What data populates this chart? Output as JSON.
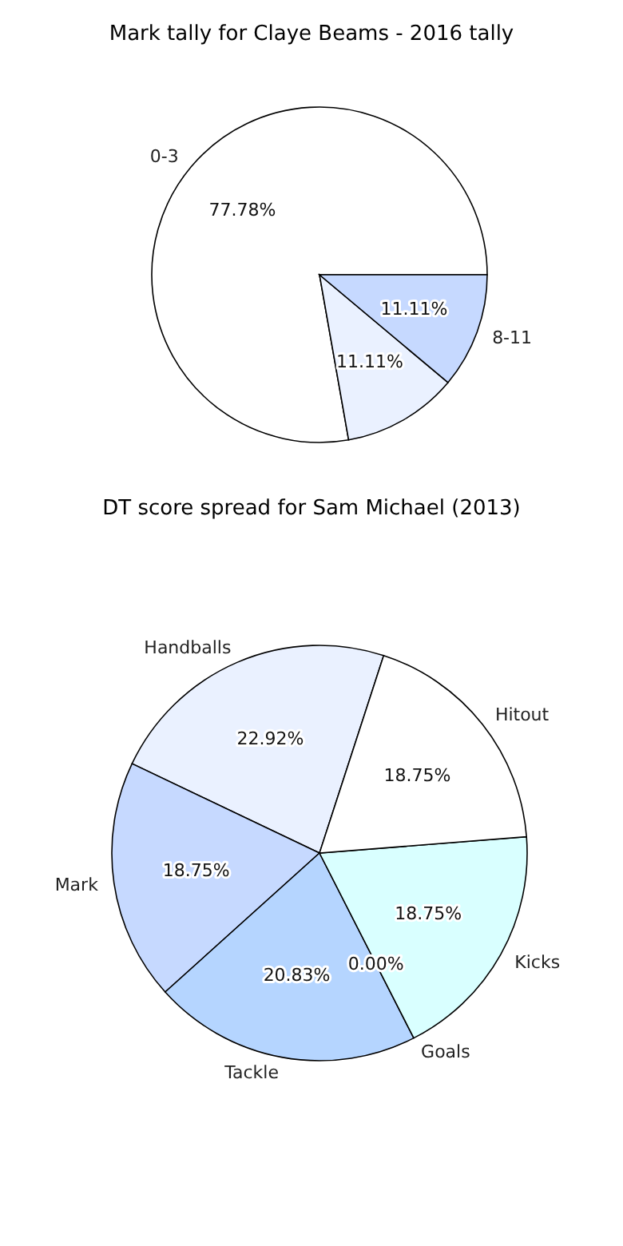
{
  "chart_data": [
    {
      "type": "pie",
      "title": "Mark tally for Claye Beams - 2016 tally",
      "categories": [
        "0-3",
        null,
        "8-11"
      ],
      "values": [
        77.78,
        11.11,
        11.11
      ],
      "colors": [
        "#ffffff",
        "#eaf1ff",
        "#c6d9ff"
      ],
      "value_labels": [
        "77.78%",
        "11.11%",
        "11.11%"
      ]
    },
    {
      "type": "pie",
      "title": "DT score spread for Sam Michael (2013)",
      "categories": [
        "Handballs",
        "Mark",
        "Tackle",
        "Goals",
        "Kicks",
        "Hitout"
      ],
      "values": [
        22.92,
        18.75,
        20.83,
        0.0,
        18.75,
        18.75
      ],
      "colors": [
        "#eaf1ff",
        "#c6d9ff",
        "#b5d5ff",
        "#ffffff",
        "#d9ffff",
        "#ffffff"
      ],
      "value_labels": [
        "22.92%",
        "18.75%",
        "20.83%",
        "0.00%",
        "18.75%",
        "18.75%"
      ]
    }
  ]
}
